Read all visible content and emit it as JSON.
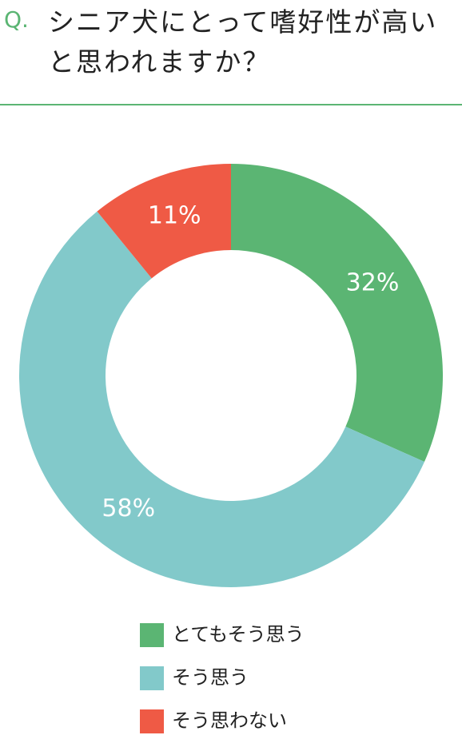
{
  "header": {
    "label": "Q.",
    "title": "シニア犬にとって嗜好性が高いと思われますか？"
  },
  "chart_data": {
    "type": "donut",
    "categories": [
      "とてもそう思う",
      "そう思う",
      "そう思わない"
    ],
    "values": [
      32,
      58,
      11
    ],
    "value_labels": [
      "32%",
      "58%",
      "11%"
    ],
    "colors": [
      "#5bb573",
      "#82c9ca",
      "#ef5a45"
    ]
  }
}
